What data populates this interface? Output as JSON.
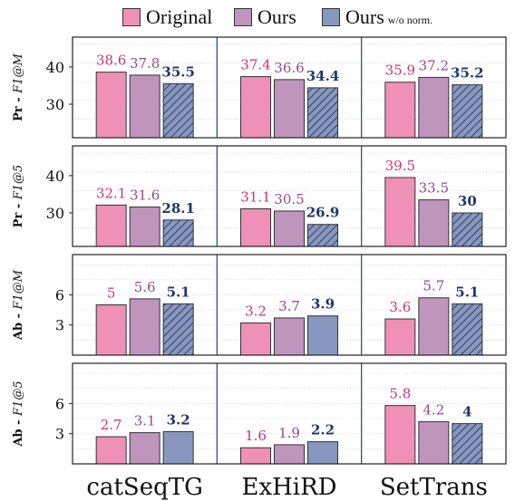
{
  "legend": {
    "original": "Original",
    "ours": "Ours",
    "ours_wo_norm_main": "Ours",
    "ours_wo_norm_sub": "w/o norm."
  },
  "colors": {
    "original": "#ef90b6",
    "ours": "#bf94bd",
    "ours_wo_norm": "#8797bf",
    "original_label": "#cc3377",
    "ours_label": "#944a8f",
    "wo_norm_label": "#1f3670",
    "divider": "#2a3f7a"
  },
  "chart_data": {
    "type": "bar",
    "categories": [
      "catSeqTG",
      "ExHiRD",
      "SetTrans"
    ],
    "series_names": [
      "Original",
      "Ours",
      "Ours w/o norm."
    ],
    "grid": true,
    "legend_position": "top",
    "panels": [
      {
        "ylabel_prefix": "Pr -",
        "ylabel_metric": "F1@M",
        "yticks": [
          30,
          40
        ],
        "ylim": [
          21,
          48
        ],
        "values": [
          [
            38.6,
            37.8,
            35.5
          ],
          [
            37.4,
            36.6,
            34.4
          ],
          [
            35.9,
            37.2,
            35.2
          ]
        ],
        "labels": [
          [
            "38.6",
            "37.8",
            "35.5"
          ],
          [
            "37.4",
            "36.6",
            "34.4"
          ],
          [
            "35.9",
            "37.2",
            "35.2"
          ]
        ],
        "hatched": [
          [
            false,
            false,
            true
          ],
          [
            false,
            false,
            true
          ],
          [
            false,
            false,
            true
          ]
        ]
      },
      {
        "ylabel_prefix": "Pr -",
        "ylabel_metric": "F1@5",
        "yticks": [
          30,
          40
        ],
        "ylim": [
          21,
          48
        ],
        "values": [
          [
            32.1,
            31.6,
            28.1
          ],
          [
            31.1,
            30.5,
            26.9
          ],
          [
            39.5,
            33.5,
            30
          ]
        ],
        "labels": [
          [
            "32.1",
            "31.6",
            "28.1"
          ],
          [
            "31.1",
            "30.5",
            "26.9"
          ],
          [
            "39.5",
            "33.5",
            "30"
          ]
        ],
        "hatched": [
          [
            false,
            false,
            true
          ],
          [
            false,
            false,
            true
          ],
          [
            false,
            false,
            true
          ]
        ]
      },
      {
        "ylabel_prefix": "Ab -",
        "ylabel_metric": "F1@M",
        "yticks": [
          3,
          6
        ],
        "ylim": [
          0,
          10
        ],
        "values": [
          [
            5,
            5.6,
            5.1
          ],
          [
            3.2,
            3.7,
            3.9
          ],
          [
            3.6,
            5.7,
            5.1
          ]
        ],
        "labels": [
          [
            "5",
            "5.6",
            "5.1"
          ],
          [
            "3.2",
            "3.7",
            "3.9"
          ],
          [
            "3.6",
            "5.7",
            "5.1"
          ]
        ],
        "hatched": [
          [
            false,
            false,
            true
          ],
          [
            false,
            false,
            false
          ],
          [
            false,
            false,
            true
          ]
        ]
      },
      {
        "ylabel_prefix": "Ab -",
        "ylabel_metric": "F1@5",
        "yticks": [
          3,
          6
        ],
        "ylim": [
          0,
          10
        ],
        "values": [
          [
            2.7,
            3.1,
            3.2
          ],
          [
            1.6,
            1.9,
            2.2
          ],
          [
            5.8,
            4.2,
            4
          ]
        ],
        "labels": [
          [
            "2.7",
            "3.1",
            "3.2"
          ],
          [
            "1.6",
            "1.9",
            "2.2"
          ],
          [
            "5.8",
            "4.2",
            "4"
          ]
        ],
        "hatched": [
          [
            false,
            false,
            false
          ],
          [
            false,
            false,
            false
          ],
          [
            false,
            false,
            true
          ]
        ]
      }
    ]
  }
}
